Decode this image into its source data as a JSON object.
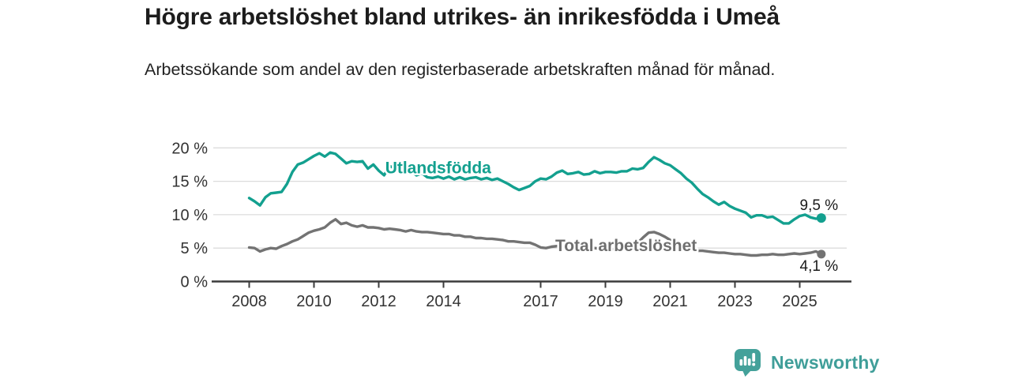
{
  "header": {
    "title": "Högre arbetslöshet bland utrikes- än inrikesfödda i Umeå",
    "subtitle": "Arbetssökande som andel av den registerbaserade arbetskraften månad för månad."
  },
  "footer": {
    "brand": "Newsworthy",
    "logo_icon": "bar-chart-speech-bubble"
  },
  "colors": {
    "foreign_born_line": "#13a08f",
    "total_line": "#737373",
    "total_label": "#6f6f6f",
    "axis": "#3b3b3b",
    "grid": "#dcdcdc",
    "tick_text": "#333333",
    "end_label_text": "#1a1a1a",
    "brand_teal": "#44a19a"
  },
  "chart_data": {
    "type": "line",
    "title": "Högre arbetslöshet bland utrikes- än inrikesfödda i Umeå",
    "subtitle": "Arbetssökande som andel av den registerbaserade arbetskraften månad för månad.",
    "unit": "percent",
    "x_start": 2008.0,
    "points_per_year": 6,
    "ylim": [
      0,
      21
    ],
    "grid": "horizontal",
    "yticks": [
      {
        "y": 0,
        "label": "0 %"
      },
      {
        "y": 5,
        "label": "5 %"
      },
      {
        "y": 10,
        "label": "10 %"
      },
      {
        "y": 15,
        "label": "15 %"
      },
      {
        "y": 20,
        "label": "20 %"
      }
    ],
    "xticks": [
      {
        "x": 2008,
        "label": "2008"
      },
      {
        "x": 2010,
        "label": "2010"
      },
      {
        "x": 2012,
        "label": "2012"
      },
      {
        "x": 2014,
        "label": "2014"
      },
      {
        "x": 2017,
        "label": "2017"
      },
      {
        "x": 2019,
        "label": "2019"
      },
      {
        "x": 2021,
        "label": "2021"
      },
      {
        "x": 2023,
        "label": "2023"
      },
      {
        "x": 2025,
        "label": "2025"
      }
    ],
    "series": [
      {
        "name": "Utlandsfödda",
        "color": "#13a08f",
        "end_label": "9,5 %",
        "end_value": 9.5,
        "label_anchor": {
          "x": 2012.2,
          "y": 17.0
        },
        "values": [
          12.5,
          12.0,
          11.4,
          12.6,
          13.2,
          13.3,
          13.4,
          14.6,
          16.4,
          17.5,
          17.8,
          18.3,
          18.8,
          19.2,
          18.7,
          19.3,
          19.1,
          18.4,
          17.7,
          18.0,
          17.9,
          18.0,
          16.9,
          17.5,
          16.6,
          15.9,
          17.3,
          16.9,
          16.5,
          16.3,
          16.5,
          15.9,
          16.2,
          15.6,
          15.5,
          15.7,
          15.4,
          15.7,
          15.3,
          15.6,
          15.3,
          15.5,
          15.6,
          15.3,
          15.5,
          15.2,
          15.4,
          15.0,
          14.6,
          14.1,
          13.7,
          14.0,
          14.3,
          15.0,
          15.4,
          15.3,
          15.7,
          16.3,
          16.6,
          16.1,
          16.2,
          16.4,
          16.0,
          16.1,
          16.5,
          16.2,
          16.4,
          16.4,
          16.3,
          16.5,
          16.5,
          16.9,
          16.8,
          17.0,
          17.9,
          18.6,
          18.2,
          17.7,
          17.4,
          16.8,
          16.2,
          15.4,
          14.8,
          13.9,
          13.1,
          12.6,
          12.0,
          11.5,
          11.9,
          11.3,
          10.9,
          10.6,
          10.3,
          9.6,
          9.9,
          9.9,
          9.6,
          9.7,
          9.2,
          8.7,
          8.7,
          9.3,
          9.8,
          10.0,
          9.6,
          9.4,
          9.5
        ]
      },
      {
        "name": "Total arbetslöshet",
        "color": "#737373",
        "end_label": "4,1 %",
        "end_value": 4.1,
        "label_anchor": {
          "x": 2017.45,
          "y": 5.35
        },
        "values": [
          5.1,
          5.0,
          4.5,
          4.8,
          5.0,
          4.9,
          5.3,
          5.6,
          6.0,
          6.3,
          6.8,
          7.3,
          7.6,
          7.8,
          8.1,
          8.8,
          9.3,
          8.6,
          8.8,
          8.4,
          8.2,
          8.4,
          8.1,
          8.1,
          8.0,
          7.8,
          7.9,
          7.8,
          7.7,
          7.5,
          7.7,
          7.5,
          7.4,
          7.4,
          7.3,
          7.2,
          7.1,
          7.1,
          6.9,
          6.9,
          6.7,
          6.7,
          6.5,
          6.5,
          6.4,
          6.4,
          6.3,
          6.2,
          6.0,
          6.0,
          5.9,
          5.8,
          5.8,
          5.5,
          5.1,
          5.0,
          5.2,
          5.3,
          5.3,
          5.1,
          5.1,
          5.0,
          5.2,
          5.1,
          5.0,
          4.9,
          4.9,
          4.8,
          4.9,
          5.0,
          5.1,
          5.3,
          5.8,
          6.6,
          7.3,
          7.4,
          7.1,
          6.7,
          6.2,
          5.7,
          5.3,
          5.0,
          4.8,
          4.6,
          4.6,
          4.5,
          4.4,
          4.3,
          4.3,
          4.2,
          4.1,
          4.1,
          4.0,
          3.9,
          3.9,
          4.0,
          4.0,
          4.1,
          4.0,
          4.0,
          4.1,
          4.2,
          4.1,
          4.2,
          4.3,
          4.5,
          4.1
        ]
      }
    ]
  }
}
